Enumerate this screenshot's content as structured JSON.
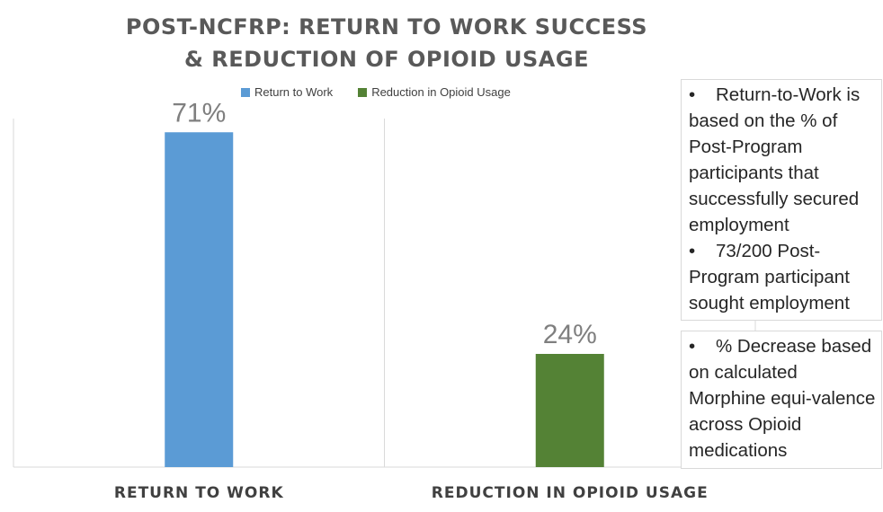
{
  "title_lines": [
    "POST-NCFRP: RETURN TO WORK SUCCESS",
    "& REDUCTION OF OPIOID USAGE"
  ],
  "legend": [
    {
      "label": "Return to Work",
      "color": "#5b9bd5"
    },
    {
      "label": "Reduction in Opioid Usage",
      "color": "#548235"
    }
  ],
  "chart_data": {
    "type": "bar",
    "title": "POST-NCFRP: RETURN TO WORK SUCCESS & REDUCTION OF OPIOID USAGE",
    "categories": [
      "RETURN TO WORK",
      "REDUCTION IN OPIOID USAGE"
    ],
    "series": [
      {
        "name": "Return to Work",
        "values": [
          71,
          null
        ],
        "color": "#5b9bd5"
      },
      {
        "name": "Reduction in Opioid Usage",
        "values": [
          null,
          24
        ],
        "color": "#548235"
      }
    ],
    "data_labels": [
      "71%",
      "24%"
    ],
    "ylim": [
      0,
      80
    ],
    "grid": false,
    "legend_position": "top"
  },
  "notes": [
    {
      "items": [
        "Return-to-Work is based on the % of Post-Program participants that successfully secured employment",
        "73/200 Post-Program participant sought employment"
      ]
    },
    {
      "items": [
        "% Decrease based on calculated Morphine equi-valence across Opioid medications"
      ]
    }
  ],
  "bullet_char": "•"
}
